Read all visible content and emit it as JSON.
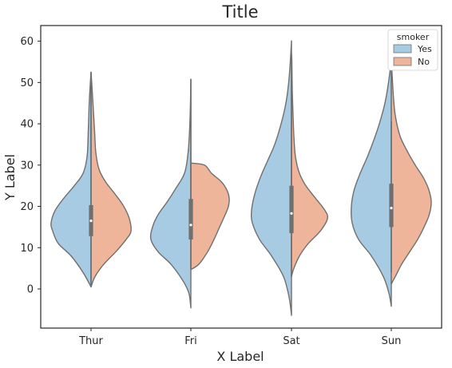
{
  "chart_data": {
    "type": "violin",
    "title": "Title",
    "xlabel": "X Label",
    "ylabel": "Y Label",
    "categories": [
      "Thur",
      "Fri",
      "Sat",
      "Sun"
    ],
    "ylim": [
      -10,
      64
    ],
    "yticks": [
      0,
      10,
      20,
      30,
      40,
      50,
      60
    ],
    "grid": false,
    "legend": {
      "title": "smoker",
      "placement": "top-right",
      "entries": [
        {
          "label": "Yes",
          "color": "#a6cbe3"
        },
        {
          "label": "No",
          "color": "#efb59a"
        }
      ]
    },
    "split": true,
    "series": [
      {
        "name": "Yes",
        "color": "#a6cbe3",
        "violins": [
          {
            "category": "Thur",
            "profile": [
              [
                0.5,
                0
              ],
              [
                4,
                0.2
              ],
              [
                8,
                0.5
              ],
              [
                11,
                0.82
              ],
              [
                14,
                0.96
              ],
              [
                16,
                1.0
              ],
              [
                19,
                0.9
              ],
              [
                22,
                0.68
              ],
              [
                25,
                0.42
              ],
              [
                28,
                0.2
              ],
              [
                32,
                0.1
              ],
              [
                38,
                0.07
              ],
              [
                44,
                0.05
              ],
              [
                48,
                0.03
              ],
              [
                52.5,
                0
              ]
            ],
            "box": {
              "q1": 12.8,
              "median": 16.5,
              "q3": 20.3,
              "whisker_low": 0.5,
              "whisker_high": 52.5
            }
          },
          {
            "category": "Fri",
            "profile": [
              [
                -4.6,
                0
              ],
              [
                -1,
                0.05
              ],
              [
                2,
                0.2
              ],
              [
                6,
                0.5
              ],
              [
                9,
                0.82
              ],
              [
                12,
                1.0
              ],
              [
                15,
                0.96
              ],
              [
                18,
                0.82
              ],
              [
                21,
                0.6
              ],
              [
                24,
                0.4
              ],
              [
                28,
                0.16
              ],
              [
                33,
                0.07
              ],
              [
                39,
                0.03
              ],
              [
                45,
                0.01
              ],
              [
                50.8,
                0
              ]
            ],
            "box": {
              "q1": 12.0,
              "median": 15.5,
              "q3": 21.8,
              "whisker_low": 5,
              "whisker_high": 50.8
            }
          },
          {
            "category": "Sat",
            "profile": [
              [
                -6.4,
                0
              ],
              [
                -2,
                0.06
              ],
              [
                3,
                0.2
              ],
              [
                8,
                0.5
              ],
              [
                12,
                0.8
              ],
              [
                16,
                0.98
              ],
              [
                19,
                1.0
              ],
              [
                23,
                0.92
              ],
              [
                27,
                0.78
              ],
              [
                31,
                0.6
              ],
              [
                35,
                0.42
              ],
              [
                40,
                0.26
              ],
              [
                45,
                0.14
              ],
              [
                50,
                0.07
              ],
              [
                55,
                0.03
              ],
              [
                60.1,
                0
              ]
            ],
            "box": {
              "q1": 13.5,
              "median": 18.3,
              "q3": 25.0,
              "whisker_low": 3,
              "whisker_high": 50.8
            }
          },
          {
            "category": "Sun",
            "profile": [
              [
                -4.2,
                0
              ],
              [
                -1,
                0.06
              ],
              [
                3,
                0.2
              ],
              [
                8,
                0.5
              ],
              [
                12,
                0.82
              ],
              [
                16,
                0.98
              ],
              [
                20,
                1.0
              ],
              [
                24,
                0.93
              ],
              [
                28,
                0.78
              ],
              [
                32,
                0.6
              ],
              [
                36,
                0.44
              ],
              [
                40,
                0.3
              ],
              [
                45,
                0.16
              ],
              [
                50,
                0.07
              ],
              [
                55.5,
                0
              ]
            ],
            "box": {
              "q1": 15.0,
              "median": 19.6,
              "q3": 25.5,
              "whisker_low": 4,
              "whisker_high": 40.6
            }
          }
        ]
      },
      {
        "name": "No",
        "color": "#efb59a",
        "violins": [
          {
            "category": "Thur",
            "profile": [
              [
                0.5,
                0
              ],
              [
                3,
                0.1
              ],
              [
                6,
                0.32
              ],
              [
                9,
                0.62
              ],
              [
                12,
                0.88
              ],
              [
                14,
                1.0
              ],
              [
                17,
                0.96
              ],
              [
                20,
                0.82
              ],
              [
                23,
                0.6
              ],
              [
                26,
                0.36
              ],
              [
                29,
                0.2
              ],
              [
                33,
                0.12
              ],
              [
                38,
                0.09
              ],
              [
                43,
                0.06
              ],
              [
                48,
                0.03
              ],
              [
                52.5,
                0
              ]
            ],
            "box": {
              "q1": 12.8,
              "median": 16.5,
              "q3": 20.3,
              "whisker_low": 0.5,
              "whisker_high": 52.5
            }
          },
          {
            "category": "Fri",
            "profile": [
              [
                4.7,
                0
              ],
              [
                6,
                0.2
              ],
              [
                9,
                0.42
              ],
              [
                12,
                0.58
              ],
              [
                15,
                0.72
              ],
              [
                18,
                0.86
              ],
              [
                20,
                0.94
              ],
              [
                22,
                0.96
              ],
              [
                24,
                0.9
              ],
              [
                26,
                0.76
              ],
              [
                28,
                0.52
              ],
              [
                30,
                0.34
              ],
              [
                30.5,
                0
              ]
            ],
            "box": {
              "q1": 12.0,
              "median": 15.5,
              "q3": 21.8,
              "whisker_low": 5,
              "whisker_high": 50.8
            }
          },
          {
            "category": "Sat",
            "profile": [
              [
                3,
                0
              ],
              [
                5,
                0.06
              ],
              [
                8,
                0.2
              ],
              [
                11,
                0.42
              ],
              [
                14,
                0.72
              ],
              [
                17,
                0.9
              ],
              [
                19,
                0.84
              ],
              [
                22,
                0.6
              ],
              [
                25,
                0.36
              ],
              [
                28,
                0.2
              ],
              [
                32,
                0.1
              ],
              [
                37,
                0.06
              ],
              [
                42,
                0.04
              ],
              [
                48,
                0.02
              ],
              [
                55,
                0.01
              ],
              [
                57,
                0
              ]
            ],
            "box": {
              "q1": 13.5,
              "median": 18.3,
              "q3": 25.0,
              "whisker_low": 3,
              "whisker_high": 50.8
            }
          },
          {
            "category": "Sun",
            "profile": [
              [
                1.2,
                0
              ],
              [
                3,
                0.1
              ],
              [
                6,
                0.26
              ],
              [
                9,
                0.46
              ],
              [
                12,
                0.66
              ],
              [
                15,
                0.82
              ],
              [
                18,
                0.95
              ],
              [
                21,
                1.0
              ],
              [
                24,
                0.94
              ],
              [
                27,
                0.8
              ],
              [
                30,
                0.6
              ],
              [
                33,
                0.42
              ],
              [
                37,
                0.22
              ],
              [
                42,
                0.1
              ],
              [
                47,
                0.05
              ],
              [
                52,
                0.02
              ],
              [
                55,
                0
              ]
            ],
            "box": {
              "q1": 15.0,
              "median": 19.6,
              "q3": 25.5,
              "whisker_low": 4,
              "whisker_high": 40.6
            }
          }
        ]
      }
    ]
  }
}
